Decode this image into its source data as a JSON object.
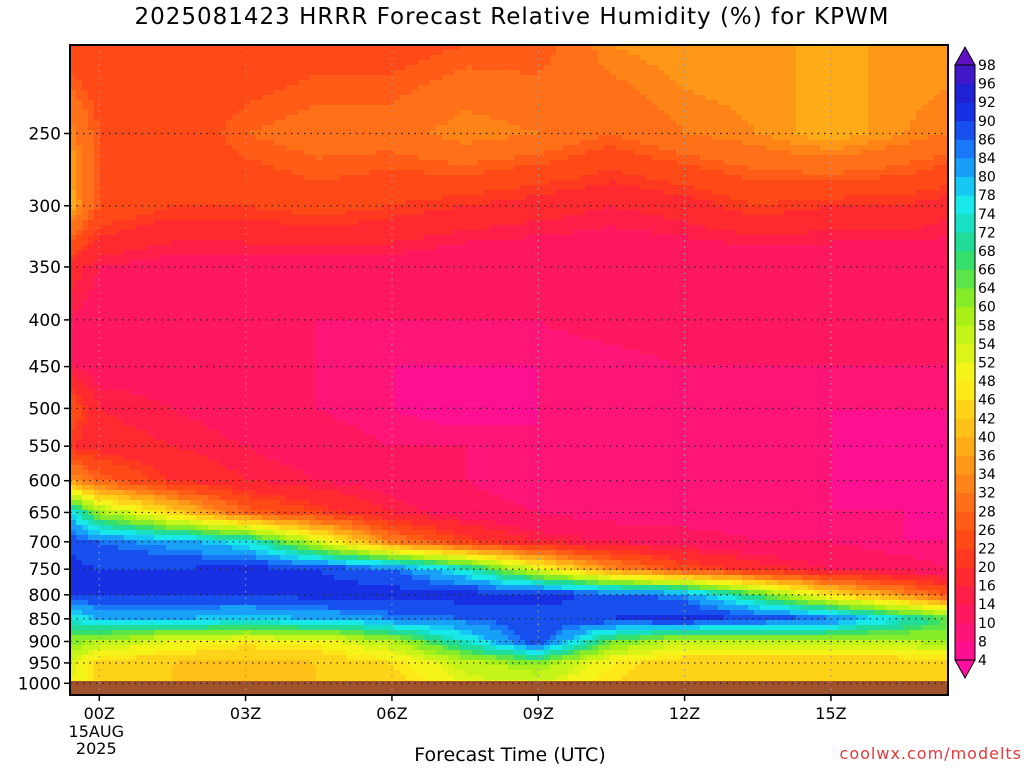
{
  "title": "2025081423 HRRR Forecast Relative Humidity (%) for KPWM",
  "credit": "coolwx.com/modelts",
  "chart_data": {
    "type": "heatmap",
    "title": "2025081423 HRRR Forecast Relative Humidity (%) for KPWM",
    "xlabel": "Forecast Time (UTC)",
    "ylabel": "",
    "x_range_hours": [
      -0.6,
      17.4
    ],
    "x_ticks": [
      {
        "hour": 0,
        "label": "00Z",
        "sub": [
          "15AUG",
          "2025"
        ]
      },
      {
        "hour": 3,
        "label": "03Z"
      },
      {
        "hour": 6,
        "label": "06Z"
      },
      {
        "hour": 9,
        "label": "09Z"
      },
      {
        "hour": 12,
        "label": "12Z"
      },
      {
        "hour": 15,
        "label": "15Z"
      }
    ],
    "y_range_hpa": [
      200,
      1030
    ],
    "y_scale": "log-pressure",
    "y_ticks": [
      250,
      300,
      350,
      400,
      450,
      500,
      550,
      600,
      650,
      700,
      750,
      800,
      850,
      900,
      950,
      1000
    ],
    "grid": true,
    "colorbar_levels": [
      4,
      8,
      10,
      14,
      16,
      20,
      22,
      26,
      28,
      32,
      34,
      36,
      40,
      42,
      46,
      48,
      52,
      54,
      58,
      60,
      64,
      66,
      68,
      72,
      74,
      78,
      80,
      84,
      86,
      90,
      92,
      96,
      98
    ],
    "colorbar_colors": [
      "#ff0fa0",
      "#ff1090",
      "#ff1478",
      "#ff1860",
      "#ff1e48",
      "#ff2a30",
      "#ff3820",
      "#ff4a18",
      "#ff5c18",
      "#ff7018",
      "#ff8418",
      "#ff9818",
      "#ffac18",
      "#ffc018",
      "#ffd418",
      "#ffe818",
      "#f4f418",
      "#dcf418",
      "#c4f418",
      "#a8f018",
      "#84ec28",
      "#5ce448",
      "#36de6a",
      "#20dc98",
      "#18e0c4",
      "#18e8e8",
      "#18c8f4",
      "#18a0f8",
      "#1878f8",
      "#1850f0",
      "#1830e4",
      "#2020d4",
      "#4018c8",
      "#6010c0"
    ],
    "pressure_levels": [
      200,
      250,
      300,
      350,
      400,
      450,
      500,
      550,
      600,
      650,
      700,
      750,
      800,
      850,
      900,
      950,
      1000
    ],
    "times_hours": [
      -0.6,
      0,
      1.5,
      3,
      4.5,
      6,
      7.5,
      9,
      10.5,
      12,
      13.5,
      15,
      16.5,
      17.4
    ],
    "values": [
      [
        22,
        22,
        22,
        22,
        24,
        24,
        26,
        26,
        34,
        36,
        36,
        36,
        36,
        36
      ],
      [
        34,
        26,
        22,
        28,
        30,
        30,
        34,
        32,
        28,
        32,
        34,
        38,
        34,
        32
      ],
      [
        38,
        26,
        22,
        22,
        24,
        22,
        20,
        18,
        16,
        18,
        22,
        20,
        20,
        18
      ],
      [
        18,
        14,
        12,
        12,
        12,
        12,
        10,
        10,
        10,
        10,
        10,
        10,
        10,
        10
      ],
      [
        14,
        12,
        12,
        10,
        10,
        10,
        10,
        10,
        12,
        14,
        12,
        10,
        10,
        10
      ],
      [
        14,
        12,
        12,
        10,
        10,
        8,
        8,
        8,
        8,
        10,
        10,
        10,
        10,
        10
      ],
      [
        26,
        16,
        14,
        12,
        10,
        8,
        6,
        8,
        8,
        8,
        8,
        8,
        8,
        8
      ],
      [
        20,
        18,
        16,
        14,
        12,
        10,
        10,
        8,
        8,
        8,
        8,
        8,
        6,
        6
      ],
      [
        36,
        28,
        20,
        16,
        14,
        12,
        10,
        8,
        8,
        8,
        8,
        8,
        6,
        6
      ],
      [
        78,
        60,
        44,
        28,
        22,
        16,
        12,
        10,
        8,
        8,
        8,
        8,
        8,
        6
      ],
      [
        88,
        86,
        82,
        76,
        54,
        32,
        22,
        16,
        14,
        12,
        10,
        10,
        8,
        8
      ],
      [
        92,
        90,
        90,
        92,
        90,
        86,
        74,
        52,
        34,
        24,
        18,
        14,
        12,
        10
      ],
      [
        90,
        90,
        90,
        90,
        92,
        92,
        92,
        92,
        88,
        84,
        66,
        46,
        34,
        26
      ],
      [
        74,
        80,
        80,
        78,
        80,
        84,
        86,
        88,
        90,
        92,
        90,
        86,
        74,
        66
      ],
      [
        62,
        58,
        52,
        48,
        50,
        58,
        74,
        90,
        64,
        56,
        56,
        56,
        58,
        60
      ],
      [
        54,
        44,
        42,
        40,
        42,
        46,
        56,
        62,
        48,
        42,
        42,
        42,
        42,
        44
      ],
      [
        52,
        46,
        42,
        42,
        42,
        44,
        52,
        54,
        46,
        44,
        44,
        44,
        44,
        44
      ]
    ]
  }
}
